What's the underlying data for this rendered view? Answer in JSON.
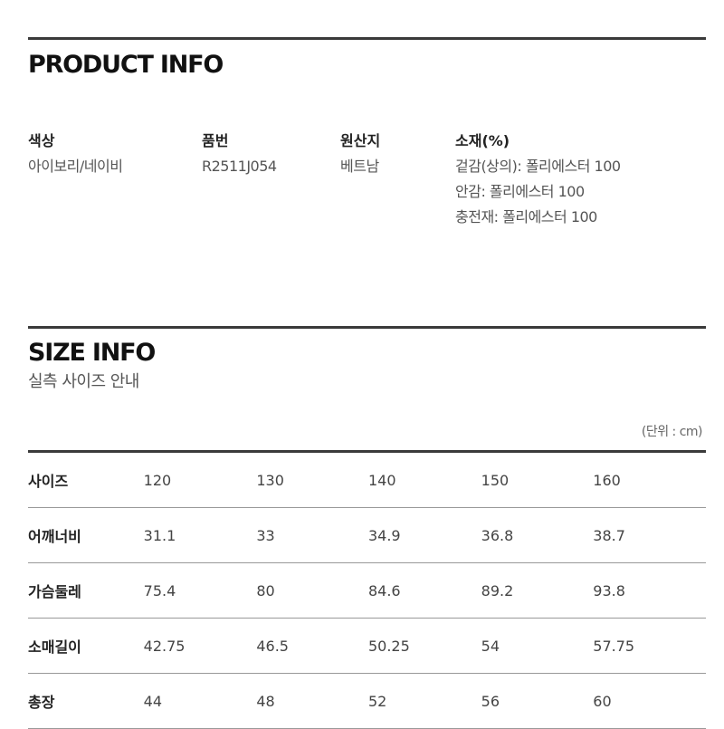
{
  "product_info": {
    "title": "PRODUCT INFO",
    "fields": [
      {
        "label": "색상",
        "values": [
          "아이보리/네이비"
        ]
      },
      {
        "label": "품번",
        "values": [
          "R2511J054"
        ]
      },
      {
        "label": "원산지",
        "values": [
          "베트남"
        ]
      },
      {
        "label": "소재(%)",
        "values": [
          "겉감(상의): 폴리에스터 100",
          "안감: 폴리에스터 100",
          "충전재: 폴리에스터 100"
        ]
      }
    ]
  },
  "size_info": {
    "title": "SIZE INFO",
    "subtitle": "실측 사이즈 안내",
    "unit": "(단위 : cm)",
    "rows": [
      {
        "label": "사이즈",
        "values": [
          "120",
          "130",
          "140",
          "150",
          "160"
        ]
      },
      {
        "label": "어깨너비",
        "values": [
          "31.1",
          "33",
          "34.9",
          "36.8",
          "38.7"
        ]
      },
      {
        "label": "가슴둘레",
        "values": [
          "75.4",
          "80",
          "84.6",
          "89.2",
          "93.8"
        ]
      },
      {
        "label": "소매길이",
        "values": [
          "42.75",
          "46.5",
          "50.25",
          "54",
          "57.75"
        ]
      },
      {
        "label": "총장",
        "values": [
          "44",
          "48",
          "52",
          "56",
          "60"
        ]
      }
    ]
  }
}
